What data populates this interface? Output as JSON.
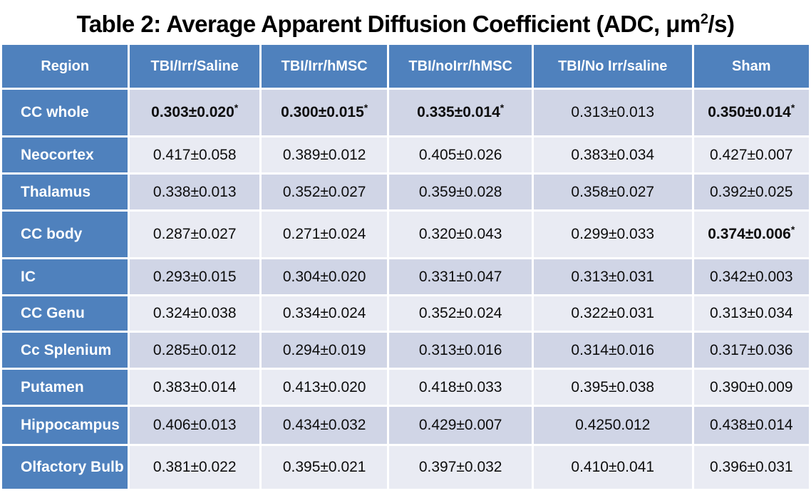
{
  "title": {
    "prefix": "Table 2: Average Apparent Diffusion Coefficient (ADC, μm",
    "sup": "2",
    "suffix": "/s)"
  },
  "colors": {
    "header_blue": "#4f81bd",
    "band_dark": "#d0d5e6",
    "band_light": "#e9ebf3",
    "header_text": "#ffffff",
    "value_text": "#0d0d0d",
    "background": "#ffffff"
  },
  "table": {
    "columns": [
      "Region",
      "TBI/Irr/Saline",
      "TBI/Irr/hMSC",
      "TBI/noIrr/hMSC",
      "TBI/No Irr/saline",
      "Sham"
    ],
    "rows": [
      {
        "region": "CC whole",
        "values": [
          {
            "text": "0.303±0.020",
            "sup": "*",
            "bold": true
          },
          {
            "text": "0.300±0.015",
            "sup": "*",
            "bold": true
          },
          {
            "text": "0.335±0.014",
            "sup": "*",
            "bold": true
          },
          {
            "text": "0.313±0.013",
            "sup": "",
            "bold": false
          },
          {
            "text": "0.350±0.014",
            "sup": "*",
            "bold": true
          }
        ]
      },
      {
        "region": "Neocortex",
        "values": [
          {
            "text": "0.417±0.058",
            "sup": "",
            "bold": false
          },
          {
            "text": "0.389±0.012",
            "sup": "",
            "bold": false
          },
          {
            "text": "0.405±0.026",
            "sup": "",
            "bold": false
          },
          {
            "text": "0.383±0.034",
            "sup": "",
            "bold": false
          },
          {
            "text": "0.427±0.007",
            "sup": "",
            "bold": false
          }
        ]
      },
      {
        "region": "Thalamus",
        "values": [
          {
            "text": "0.338±0.013",
            "sup": "",
            "bold": false
          },
          {
            "text": "0.352±0.027",
            "sup": "",
            "bold": false
          },
          {
            "text": "0.359±0.028",
            "sup": "",
            "bold": false
          },
          {
            "text": "0.358±0.027",
            "sup": "",
            "bold": false
          },
          {
            "text": "0.392±0.025",
            "sup": "",
            "bold": false
          }
        ]
      },
      {
        "region": "CC body",
        "values": [
          {
            "text": "0.287±0.027",
            "sup": "",
            "bold": false
          },
          {
            "text": "0.271±0.024",
            "sup": "",
            "bold": false
          },
          {
            "text": "0.320±0.043",
            "sup": "",
            "bold": false
          },
          {
            "text": "0.299±0.033",
            "sup": "",
            "bold": false
          },
          {
            "text": "0.374±0.006",
            "sup": "*",
            "bold": true
          }
        ]
      },
      {
        "region": "IC",
        "values": [
          {
            "text": "0.293±0.015",
            "sup": "",
            "bold": false
          },
          {
            "text": "0.304±0.020",
            "sup": "",
            "bold": false
          },
          {
            "text": "0.331±0.047",
            "sup": "",
            "bold": false
          },
          {
            "text": "0.313±0.031",
            "sup": "",
            "bold": false
          },
          {
            "text": "0.342±0.003",
            "sup": "",
            "bold": false
          }
        ]
      },
      {
        "region": "CC Genu",
        "values": [
          {
            "text": "0.324±0.038",
            "sup": "",
            "bold": false
          },
          {
            "text": "0.334±0.024",
            "sup": "",
            "bold": false
          },
          {
            "text": "0.352±0.024",
            "sup": "",
            "bold": false
          },
          {
            "text": "0.322±0.031",
            "sup": "",
            "bold": false
          },
          {
            "text": "0.313±0.034",
            "sup": "",
            "bold": false
          }
        ]
      },
      {
        "region": "Cc Splenium",
        "values": [
          {
            "text": "0.285±0.012",
            "sup": "",
            "bold": false
          },
          {
            "text": "0.294±0.019",
            "sup": "",
            "bold": false
          },
          {
            "text": "0.313±0.016",
            "sup": "",
            "bold": false
          },
          {
            "text": "0.314±0.016",
            "sup": "",
            "bold": false
          },
          {
            "text": "0.317±0.036",
            "sup": "",
            "bold": false
          }
        ]
      },
      {
        "region": "Putamen",
        "values": [
          {
            "text": "0.383±0.014",
            "sup": "",
            "bold": false
          },
          {
            "text": "0.413±0.020",
            "sup": "",
            "bold": false
          },
          {
            "text": "0.418±0.033",
            "sup": "",
            "bold": false
          },
          {
            "text": "0.395±0.038",
            "sup": "",
            "bold": false
          },
          {
            "text": "0.390±0.009",
            "sup": "",
            "bold": false
          }
        ]
      },
      {
        "region": "Hippocampus",
        "values": [
          {
            "text": "0.406±0.013",
            "sup": "",
            "bold": false
          },
          {
            "text": "0.434±0.032",
            "sup": "",
            "bold": false
          },
          {
            "text": "0.429±0.007",
            "sup": "",
            "bold": false
          },
          {
            "text": "0.4250.012",
            "sup": "",
            "bold": false
          },
          {
            "text": "0.438±0.014",
            "sup": "",
            "bold": false
          }
        ]
      },
      {
        "region": "Olfactory Bulb",
        "values": [
          {
            "text": "0.381±0.022",
            "sup": "",
            "bold": false
          },
          {
            "text": "0.395±0.021",
            "sup": "",
            "bold": false
          },
          {
            "text": "0.397±0.032",
            "sup": "",
            "bold": false
          },
          {
            "text": "0.410±0.041",
            "sup": "",
            "bold": false
          },
          {
            "text": "0.396±0.031",
            "sup": "",
            "bold": false
          }
        ]
      }
    ]
  }
}
